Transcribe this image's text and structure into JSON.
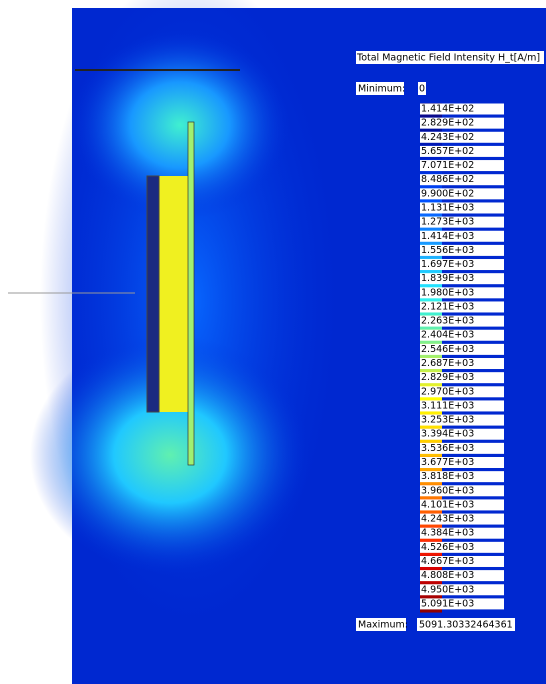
{
  "legend": {
    "title": "Total Magnetic Field Intensity H_t[A/m]",
    "minimum_label": "Minimum:",
    "minimum_value": "0",
    "maximum_label": "Maximum:",
    "maximum_value": "5091.30332464361",
    "labels": [
      "1.414E+02",
      "2.829E+02",
      "4.243E+02",
      "5.657E+02",
      "7.071E+02",
      "8.486E+02",
      "9.900E+02",
      "1.131E+03",
      "1.273E+03",
      "1.414E+03",
      "1.556E+03",
      "1.697E+03",
      "1.839E+03",
      "1.980E+03",
      "2.121E+03",
      "2.263E+03",
      "2.404E+03",
      "2.546E+03",
      "2.687E+03",
      "2.829E+03",
      "2.970E+03",
      "3.111E+03",
      "3.253E+03",
      "3.394E+03",
      "3.536E+03",
      "3.677E+03",
      "3.818E+03",
      "3.960E+03",
      "4.101E+03",
      "4.243E+03",
      "4.384E+03",
      "4.526E+03",
      "4.667E+03",
      "4.808E+03",
      "4.950E+03",
      "5.091E+03"
    ],
    "colors": [
      "#0a0a8c",
      "#0010a0",
      "#0018b4",
      "#0020c8",
      "#0030dc",
      "#0040f0",
      "#0050ff",
      "#0868ff",
      "#1080ff",
      "#1898ff",
      "#20b0ff",
      "#20c8ff",
      "#20e0ff",
      "#30f0f0",
      "#40f0d0",
      "#60f0b0",
      "#80f090",
      "#a0f070",
      "#c0f050",
      "#e0f030",
      "#ffff00",
      "#fff000",
      "#ffe000",
      "#ffd000",
      "#ffc000",
      "#ffa800",
      "#ff9000",
      "#ff7800",
      "#ff6000",
      "#ff4800",
      "#ff3000",
      "#f01800",
      "#d80000",
      "#c00000",
      "#a80000",
      "#900000"
    ]
  }
}
